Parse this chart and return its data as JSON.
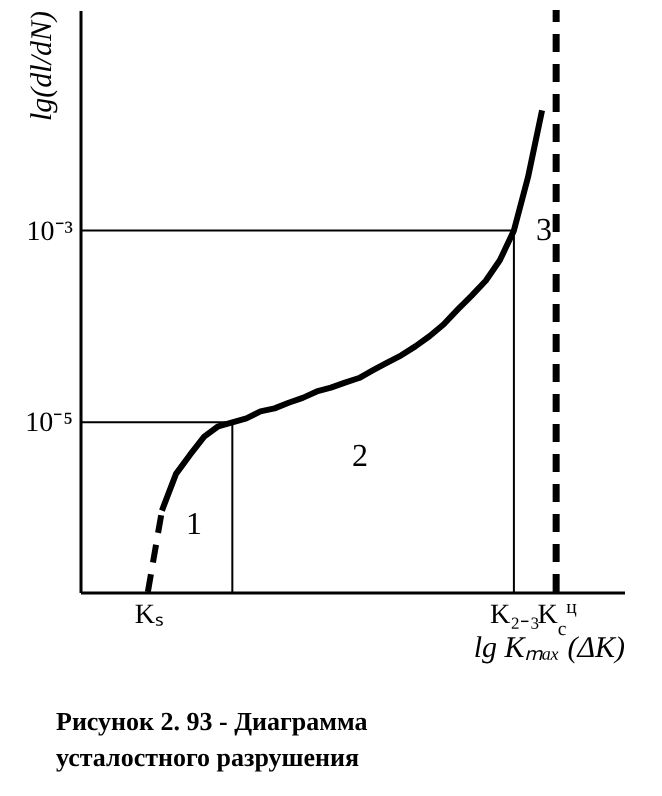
{
  "chart_data": {
    "type": "line",
    "title": "Рисунок 2. 93 - Диаграмма усталостного разрушения",
    "xlabel": "lg Kₘₐₓ (ΔK)",
    "ylabel": "lg(dl/dN)",
    "log": "y",
    "ylim": [
      1.7e-07,
      0.2
    ],
    "yticks": [
      {
        "value": 1e-05,
        "label": "10⁻⁵"
      },
      {
        "value": 0.001,
        "label": "10⁻³"
      }
    ],
    "categories": [
      null,
      null,
      null,
      null,
      "Kₛ",
      null,
      null,
      null,
      null,
      null,
      null,
      null,
      null,
      null,
      null,
      null,
      null,
      null,
      null,
      null,
      null,
      null,
      null,
      null,
      null,
      null,
      null,
      null,
      null,
      null,
      "K₂₋₃",
      null,
      null,
      "K$_{c}$$^{ц}$",
      null,
      null,
      null,
      null
    ],
    "series": [
      {
        "color": "#000000",
        "line_style": "dashed",
        "values": [
          null,
          null,
          null,
          null,
          1.7e-07,
          1.2e-06,
          null,
          null,
          null,
          null,
          null,
          null,
          null,
          null,
          null,
          null,
          null,
          null,
          null,
          null,
          null,
          null,
          null,
          null,
          null,
          null,
          null,
          null,
          null,
          null,
          null,
          null,
          null,
          null,
          null,
          null,
          null,
          null
        ]
      },
      {
        "color": "#000000",
        "line_style": "solid",
        "values": [
          null,
          null,
          null,
          null,
          null,
          1.2e-06,
          2.9e-06,
          4.6e-06,
          7.1e-06,
          9.1e-06,
          1e-05,
          1.1e-05,
          1.3e-05,
          1.4e-05,
          1.6e-05,
          1.8e-05,
          2.1e-05,
          2.3e-05,
          2.6e-05,
          2.9e-05,
          3.5e-05,
          4.2e-05,
          5e-05,
          6.2e-05,
          7.9e-05,
          0.000105,
          0.00015,
          0.00021,
          0.0003,
          0.00049,
          0.001,
          0.0036,
          0.018,
          null,
          null,
          null,
          null,
          null
        ]
      }
    ],
    "ref_lines": [
      {
        "axis": "y",
        "value": 1e-05
      },
      {
        "axis": "y",
        "value": 0.001
      },
      {
        "axis": "x",
        "value": "K$_{c}$$^{ц}$",
        "line_style": "dashed"
      }
    ],
    "annotations": [
      "1",
      "2",
      "3"
    ]
  }
}
